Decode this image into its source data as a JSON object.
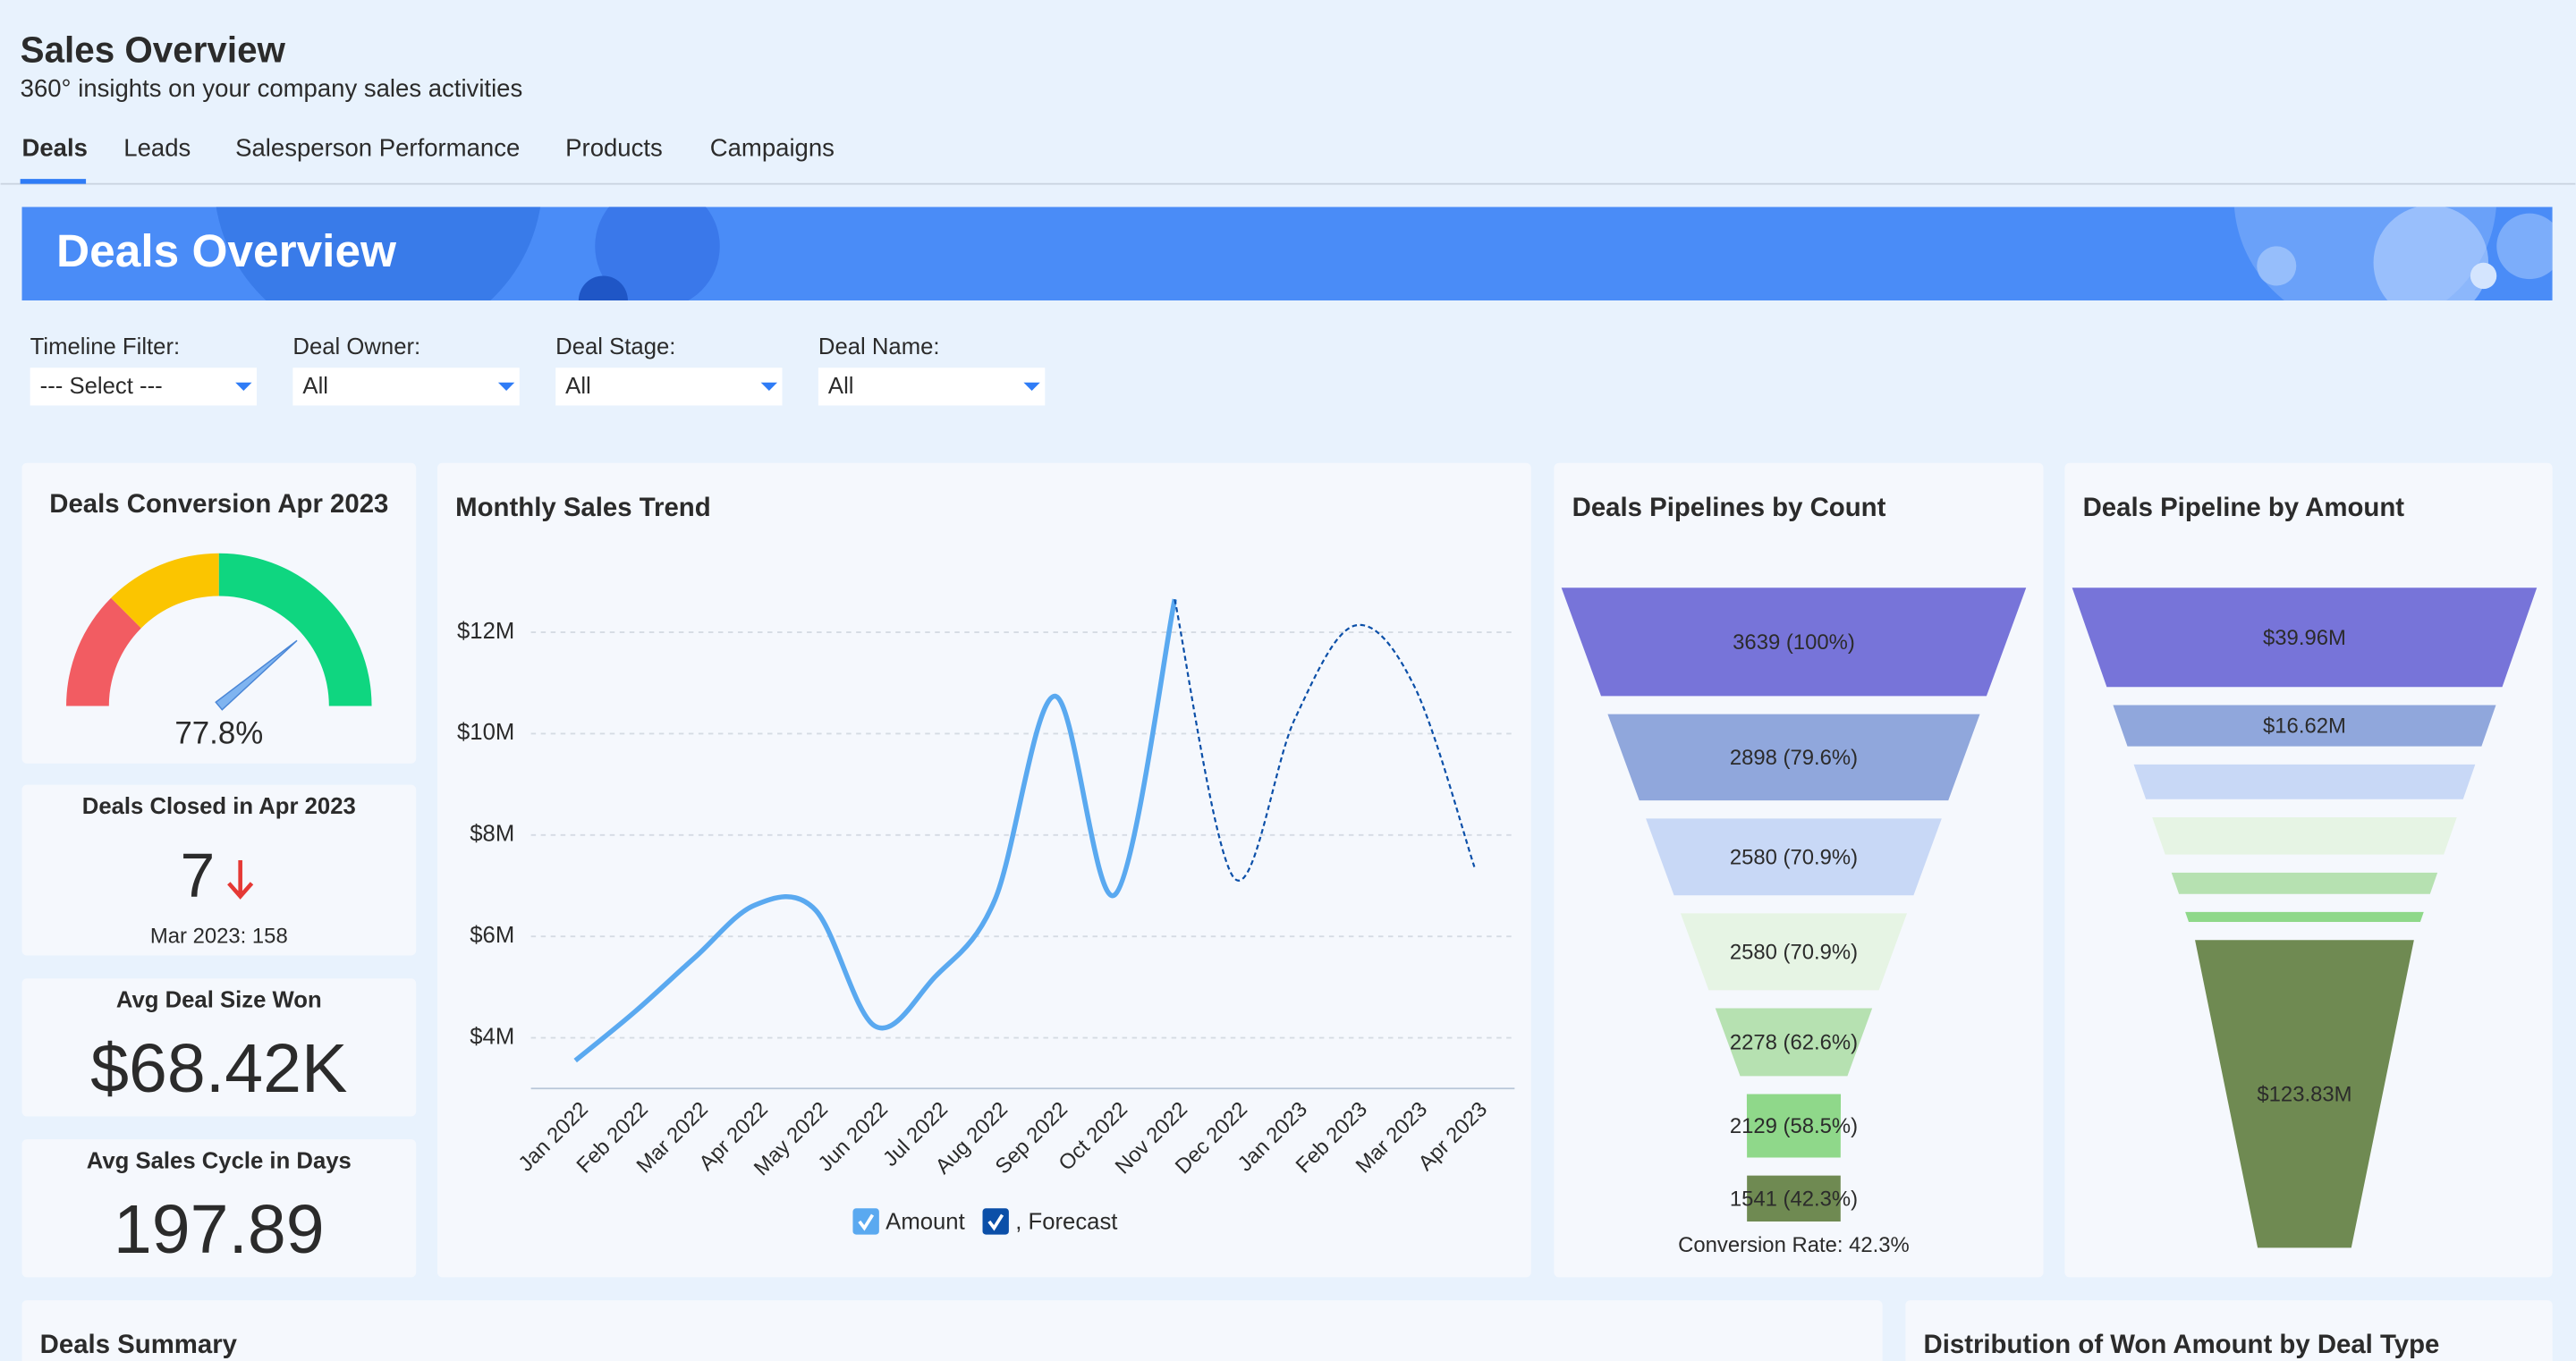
{
  "header": {
    "title": "Sales Overview",
    "subtitle": "360° insights on your company sales activities"
  },
  "tabs": [
    "Deals",
    "Leads",
    "Salesperson Performance",
    "Products",
    "Campaigns"
  ],
  "banner": "Deals Overview",
  "filters": [
    {
      "label": "Timeline Filter:",
      "value": "--- Select ---"
    },
    {
      "label": "Deal Owner:",
      "value": "All"
    },
    {
      "label": "Deal Stage:",
      "value": "All"
    },
    {
      "label": "Deal Name:",
      "value": "All"
    }
  ],
  "deals_closed": {
    "title": "Deals Closed in Apr 2023",
    "value": 7,
    "comparison": "Mar 2023: 158"
  },
  "avg_deal_size": {
    "title": "Avg Deal Size Won",
    "value": "$68.42K"
  },
  "avg_sales_cycle": {
    "title": "Avg Sales Cycle in Days",
    "value": 197.89
  },
  "panels": [
    "Deals Summary",
    "Distribution of Won Amount by Deal Type"
  ],
  "chart_data": [
    {
      "type": "gauge",
      "title": "Deals Conversion Apr 2023",
      "value": 77.8,
      "value_label": "77.8%",
      "ylim": [
        0,
        100
      ],
      "needle_color": "#7fb4f0",
      "bands": [
        {
          "to": 25,
          "color": "#f25c62"
        },
        {
          "to": 50,
          "color": "#fbc500"
        },
        {
          "to": 100,
          "color": "#0fd680"
        }
      ]
    },
    {
      "type": "line",
      "title": "Monthly Sales Trend",
      "categories": [
        "Jan 2022",
        "Feb 2022",
        "Mar 2022",
        "Apr 2022",
        "May 2022",
        "Jun 2022",
        "Jul 2022",
        "Aug 2022",
        "Sep 2022",
        "Oct 2022",
        "Nov 2022",
        "Dec 2022",
        "Jan 2023",
        "Feb 2023",
        "Mar 2023",
        "Apr 2023"
      ],
      "series": [
        {
          "name": "Amount",
          "color": "#5aa9f0",
          "values": [
            3.55,
            4.52,
            5.59,
            6.62,
            6.53,
            4.23,
            5.2,
            6.72,
            10.74,
            6.82,
            12.65,
            null,
            null,
            null,
            null,
            null
          ]
        },
        {
          "name": ", Forecast",
          "color": "#0b4fa8",
          "values": [
            null,
            null,
            null,
            null,
            null,
            null,
            null,
            null,
            null,
            null,
            12.65,
            7.14,
            10.28,
            12.13,
            10.93,
            7.37
          ]
        }
      ],
      "ylim": [
        3,
        13
      ],
      "yticks": [
        {
          "value": 4,
          "label": "$4M"
        },
        {
          "value": 6,
          "label": "$6M"
        },
        {
          "value": 8,
          "label": "$8M"
        },
        {
          "value": 10,
          "label": "$10M"
        },
        {
          "value": 12,
          "label": "$12M"
        }
      ],
      "grid": true
    },
    {
      "type": "funnel",
      "title": "Deals Pipelines by Count",
      "values": [
        3639,
        2898,
        2580,
        2580,
        2278,
        2129,
        1541
      ],
      "value_labels": [
        "3639 (100%)",
        "2898 (79.6%)",
        "2580 (70.9%)",
        "2580 (70.9%)",
        "2278 (62.6%)",
        "2129 (58.5%)",
        "1541 (42.3%)"
      ],
      "colors": [
        "#7774d9",
        "#90a7dc",
        "#c8d8f6",
        "#e6f4e4",
        "#b6e1b1",
        "#8fd88a",
        "#6f8a52"
      ],
      "footer": "Conversion Rate: 42.3%"
    },
    {
      "type": "funnel",
      "title": "Deals Pipeline by Amount",
      "values": [
        39.96,
        16.62,
        14,
        15,
        8.6,
        4,
        123.83
      ],
      "value_labels": [
        "$39.96M",
        "$16.62M",
        null,
        null,
        null,
        null,
        "$123.83M"
      ],
      "colors": [
        "#7774d9",
        "#90a7dc",
        "#c8d8f6",
        "#e6f4e4",
        "#b6e1b1",
        "#8fd88a",
        "#6f8a52"
      ]
    }
  ]
}
